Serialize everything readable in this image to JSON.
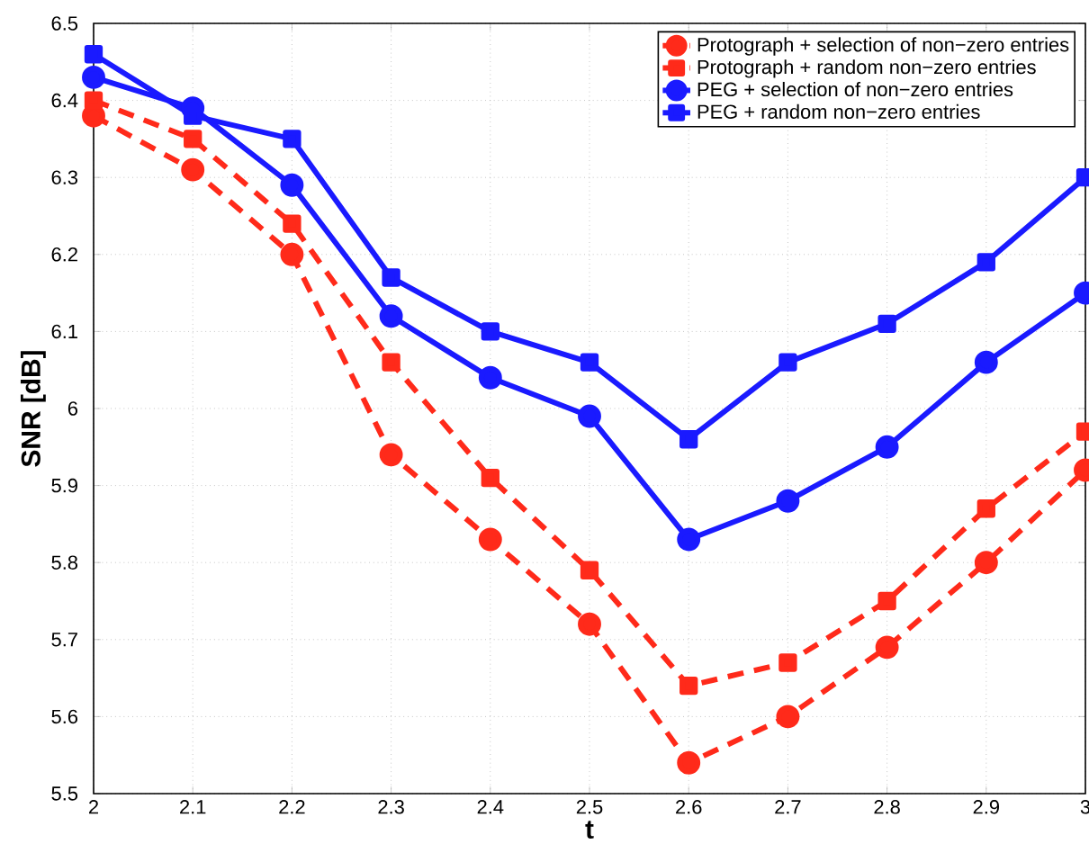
{
  "chart_data": {
    "type": "line",
    "xlabel": "t",
    "ylabel": "SNR [dB]",
    "x": [
      2,
      2.1,
      2.2,
      2.3,
      2.4,
      2.5,
      2.6,
      2.7,
      2.8,
      2.9,
      3
    ],
    "series": [
      {
        "name": "Protograph + selection of non−zero entries",
        "color": "#ff2a1a",
        "marker": "circle",
        "line_style": "dashed",
        "values": [
          6.38,
          6.31,
          6.2,
          5.94,
          5.83,
          5.72,
          5.54,
          5.6,
          5.69,
          5.8,
          5.92
        ]
      },
      {
        "name": "Protograph + random non−zero entries",
        "color": "#ff2a1a",
        "marker": "square",
        "line_style": "dashed",
        "values": [
          6.4,
          6.35,
          6.24,
          6.06,
          5.91,
          5.79,
          5.64,
          5.67,
          5.75,
          5.87,
          5.97
        ]
      },
      {
        "name": "PEG + selection of non−zero entries",
        "color": "#1a1aff",
        "marker": "circle",
        "line_style": "solid",
        "values": [
          6.43,
          6.39,
          6.29,
          6.12,
          6.04,
          5.99,
          5.83,
          5.88,
          5.95,
          6.06,
          6.15
        ]
      },
      {
        "name": "PEG + random non−zero entries",
        "color": "#1a1aff",
        "marker": "square",
        "line_style": "solid",
        "values": [
          6.46,
          6.38,
          6.35,
          6.17,
          6.1,
          6.06,
          5.96,
          6.06,
          6.11,
          6.19,
          6.3
        ]
      }
    ],
    "xlim": [
      2,
      3
    ],
    "ylim": [
      5.5,
      6.5
    ],
    "xticks": [
      2,
      2.1,
      2.2,
      2.3,
      2.4,
      2.5,
      2.6,
      2.7,
      2.8,
      2.9,
      3
    ],
    "yticks": [
      5.5,
      5.6,
      5.7,
      5.8,
      5.9,
      6,
      6.1,
      6.2,
      6.3,
      6.4,
      6.5
    ],
    "grid": true,
    "legend": "top right"
  }
}
